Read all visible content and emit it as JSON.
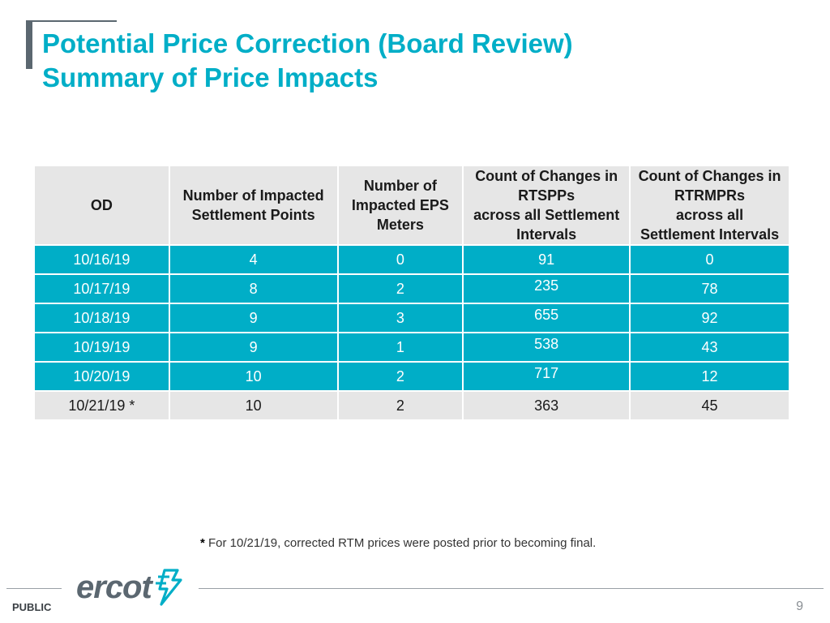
{
  "header": {
    "title_line1": "Potential Price Correction (Board Review)",
    "title_line2": "Summary of Price Impacts",
    "accent_color": "#00aec7"
  },
  "table": {
    "headers": [
      "OD",
      "Number of Impacted Settlement Points",
      "Number of Impacted EPS Meters",
      "Count of Changes in RTSPPs across all Settlement Intervals",
      "Count of Changes in RTRMPRs across all Settlement Intervals"
    ],
    "header_lines": [
      [
        "OD"
      ],
      [
        "Number of Impacted",
        "Settlement Points"
      ],
      [
        "Number of",
        "Impacted EPS",
        "Meters"
      ],
      [
        "Count of Changes in",
        "RTSPPs",
        "across all Settlement",
        "Intervals"
      ],
      [
        "Count of Changes in",
        "RTRMPRs",
        "across all",
        "Settlement Intervals"
      ]
    ],
    "rows": [
      {
        "od": "10/16/19",
        "settlement_points": "4",
        "eps_meters": "0",
        "rtspp_changes": "91",
        "rtrmpr_changes": "0"
      },
      {
        "od": "10/17/19",
        "settlement_points": "8",
        "eps_meters": "2",
        "rtspp_changes": "235",
        "rtrmpr_changes": "78"
      },
      {
        "od": "10/18/19",
        "settlement_points": "9",
        "eps_meters": "3",
        "rtspp_changes": "655",
        "rtrmpr_changes": "92"
      },
      {
        "od": "10/19/19",
        "settlement_points": "9",
        "eps_meters": "1",
        "rtspp_changes": "538",
        "rtrmpr_changes": "43"
      },
      {
        "od": "10/20/19",
        "settlement_points": "10",
        "eps_meters": "2",
        "rtspp_changes": "717",
        "rtrmpr_changes": "12"
      },
      {
        "od": "10/21/19 *",
        "settlement_points": "10",
        "eps_meters": "2",
        "rtspp_changes": "363",
        "rtrmpr_changes": "45"
      }
    ],
    "highlight_color": "#00aec7",
    "header_bg_color": "#e6e6e6"
  },
  "footnote": {
    "marker": "*",
    "text": " For 10/21/19, corrected RTM prices were posted prior to becoming final."
  },
  "footer": {
    "logo_text": "ercot",
    "logo_icon": "ercot-lightning-logo-icon",
    "classification": "PUBLIC",
    "page_number": "9"
  }
}
